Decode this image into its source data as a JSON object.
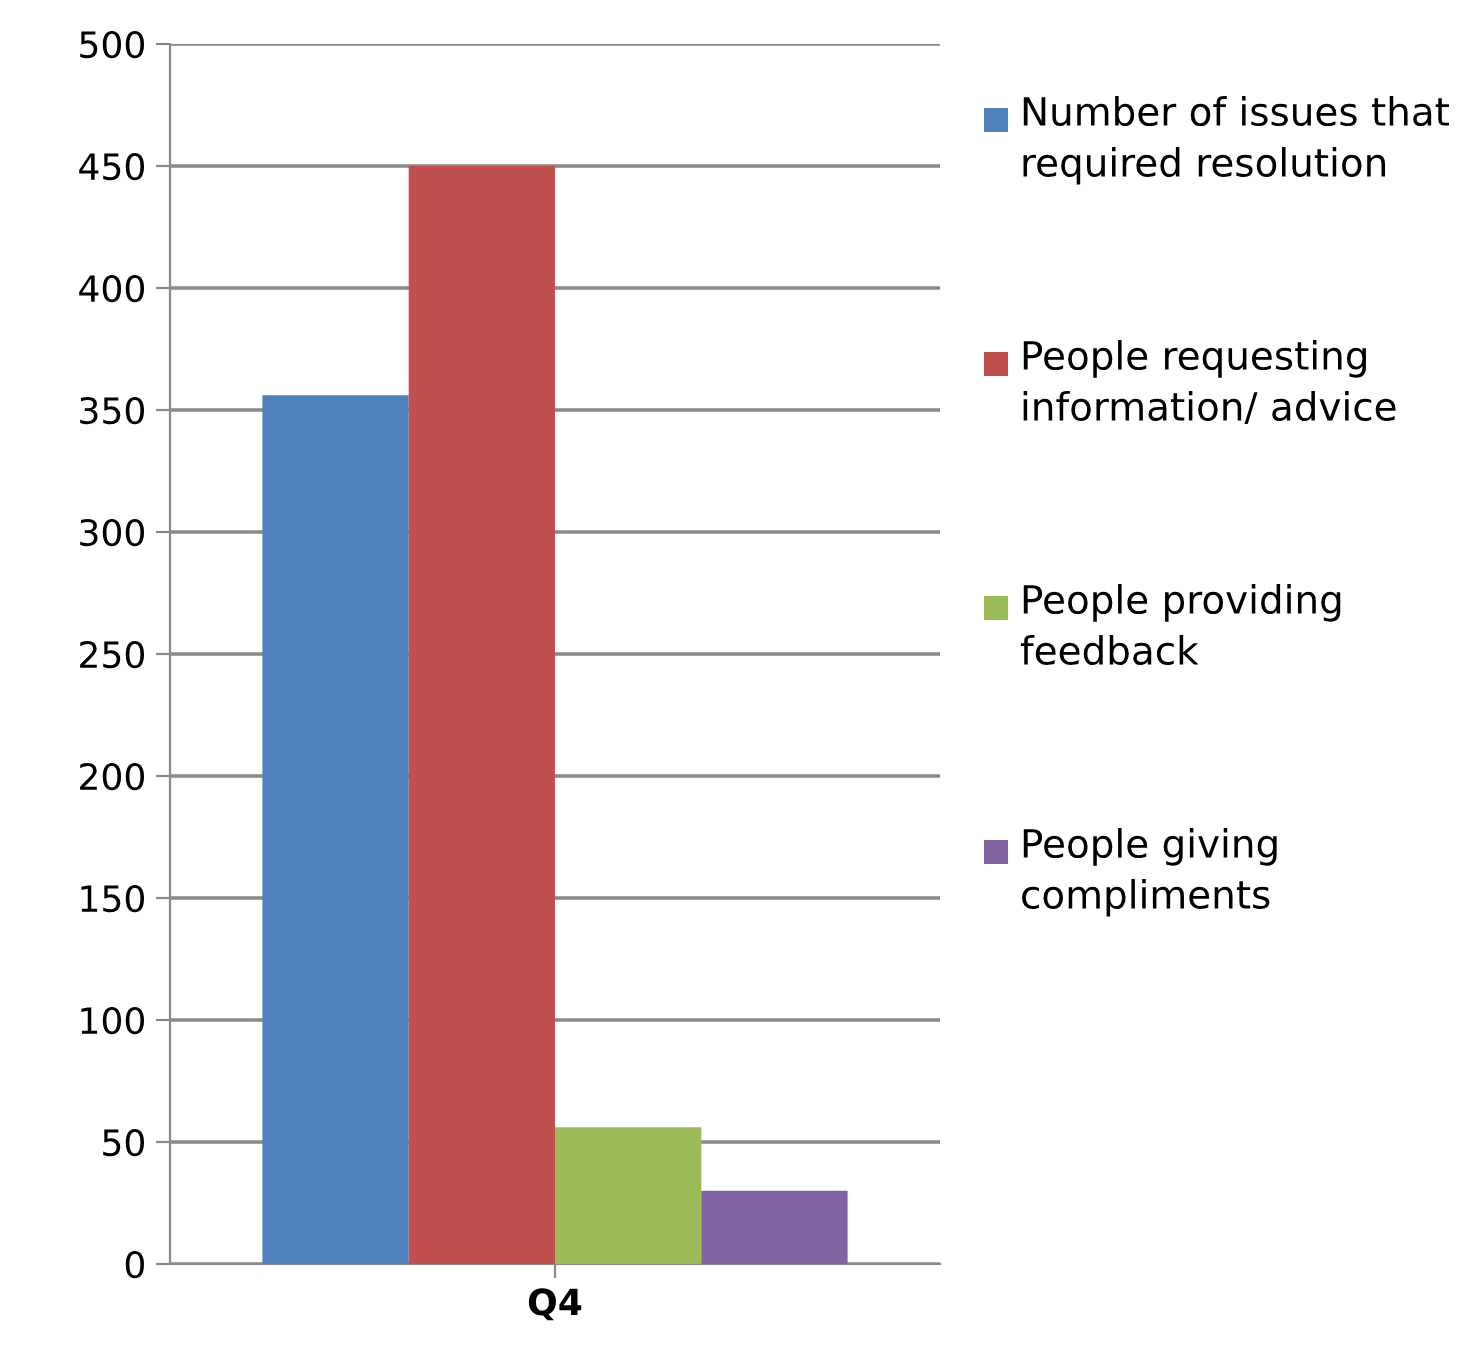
{
  "chart_data": {
    "type": "bar",
    "categories": [
      "Q4"
    ],
    "series": [
      {
        "name": "Number of issues that required resolution",
        "color": "#4f81bd",
        "values": [
          356
        ]
      },
      {
        "name": "People requesting information/ advice",
        "color": "#c0504d",
        "values": [
          450
        ]
      },
      {
        "name": "People providing feedback",
        "color": "#9bbb59",
        "values": [
          56
        ]
      },
      {
        "name": "People giving compliments",
        "color": "#8064a2",
        "values": [
          30
        ]
      }
    ],
    "ylim": [
      0,
      500
    ],
    "yticks": [
      0,
      50,
      100,
      150,
      200,
      250,
      300,
      350,
      400,
      450,
      500
    ],
    "grid": "y",
    "legend": "right"
  }
}
